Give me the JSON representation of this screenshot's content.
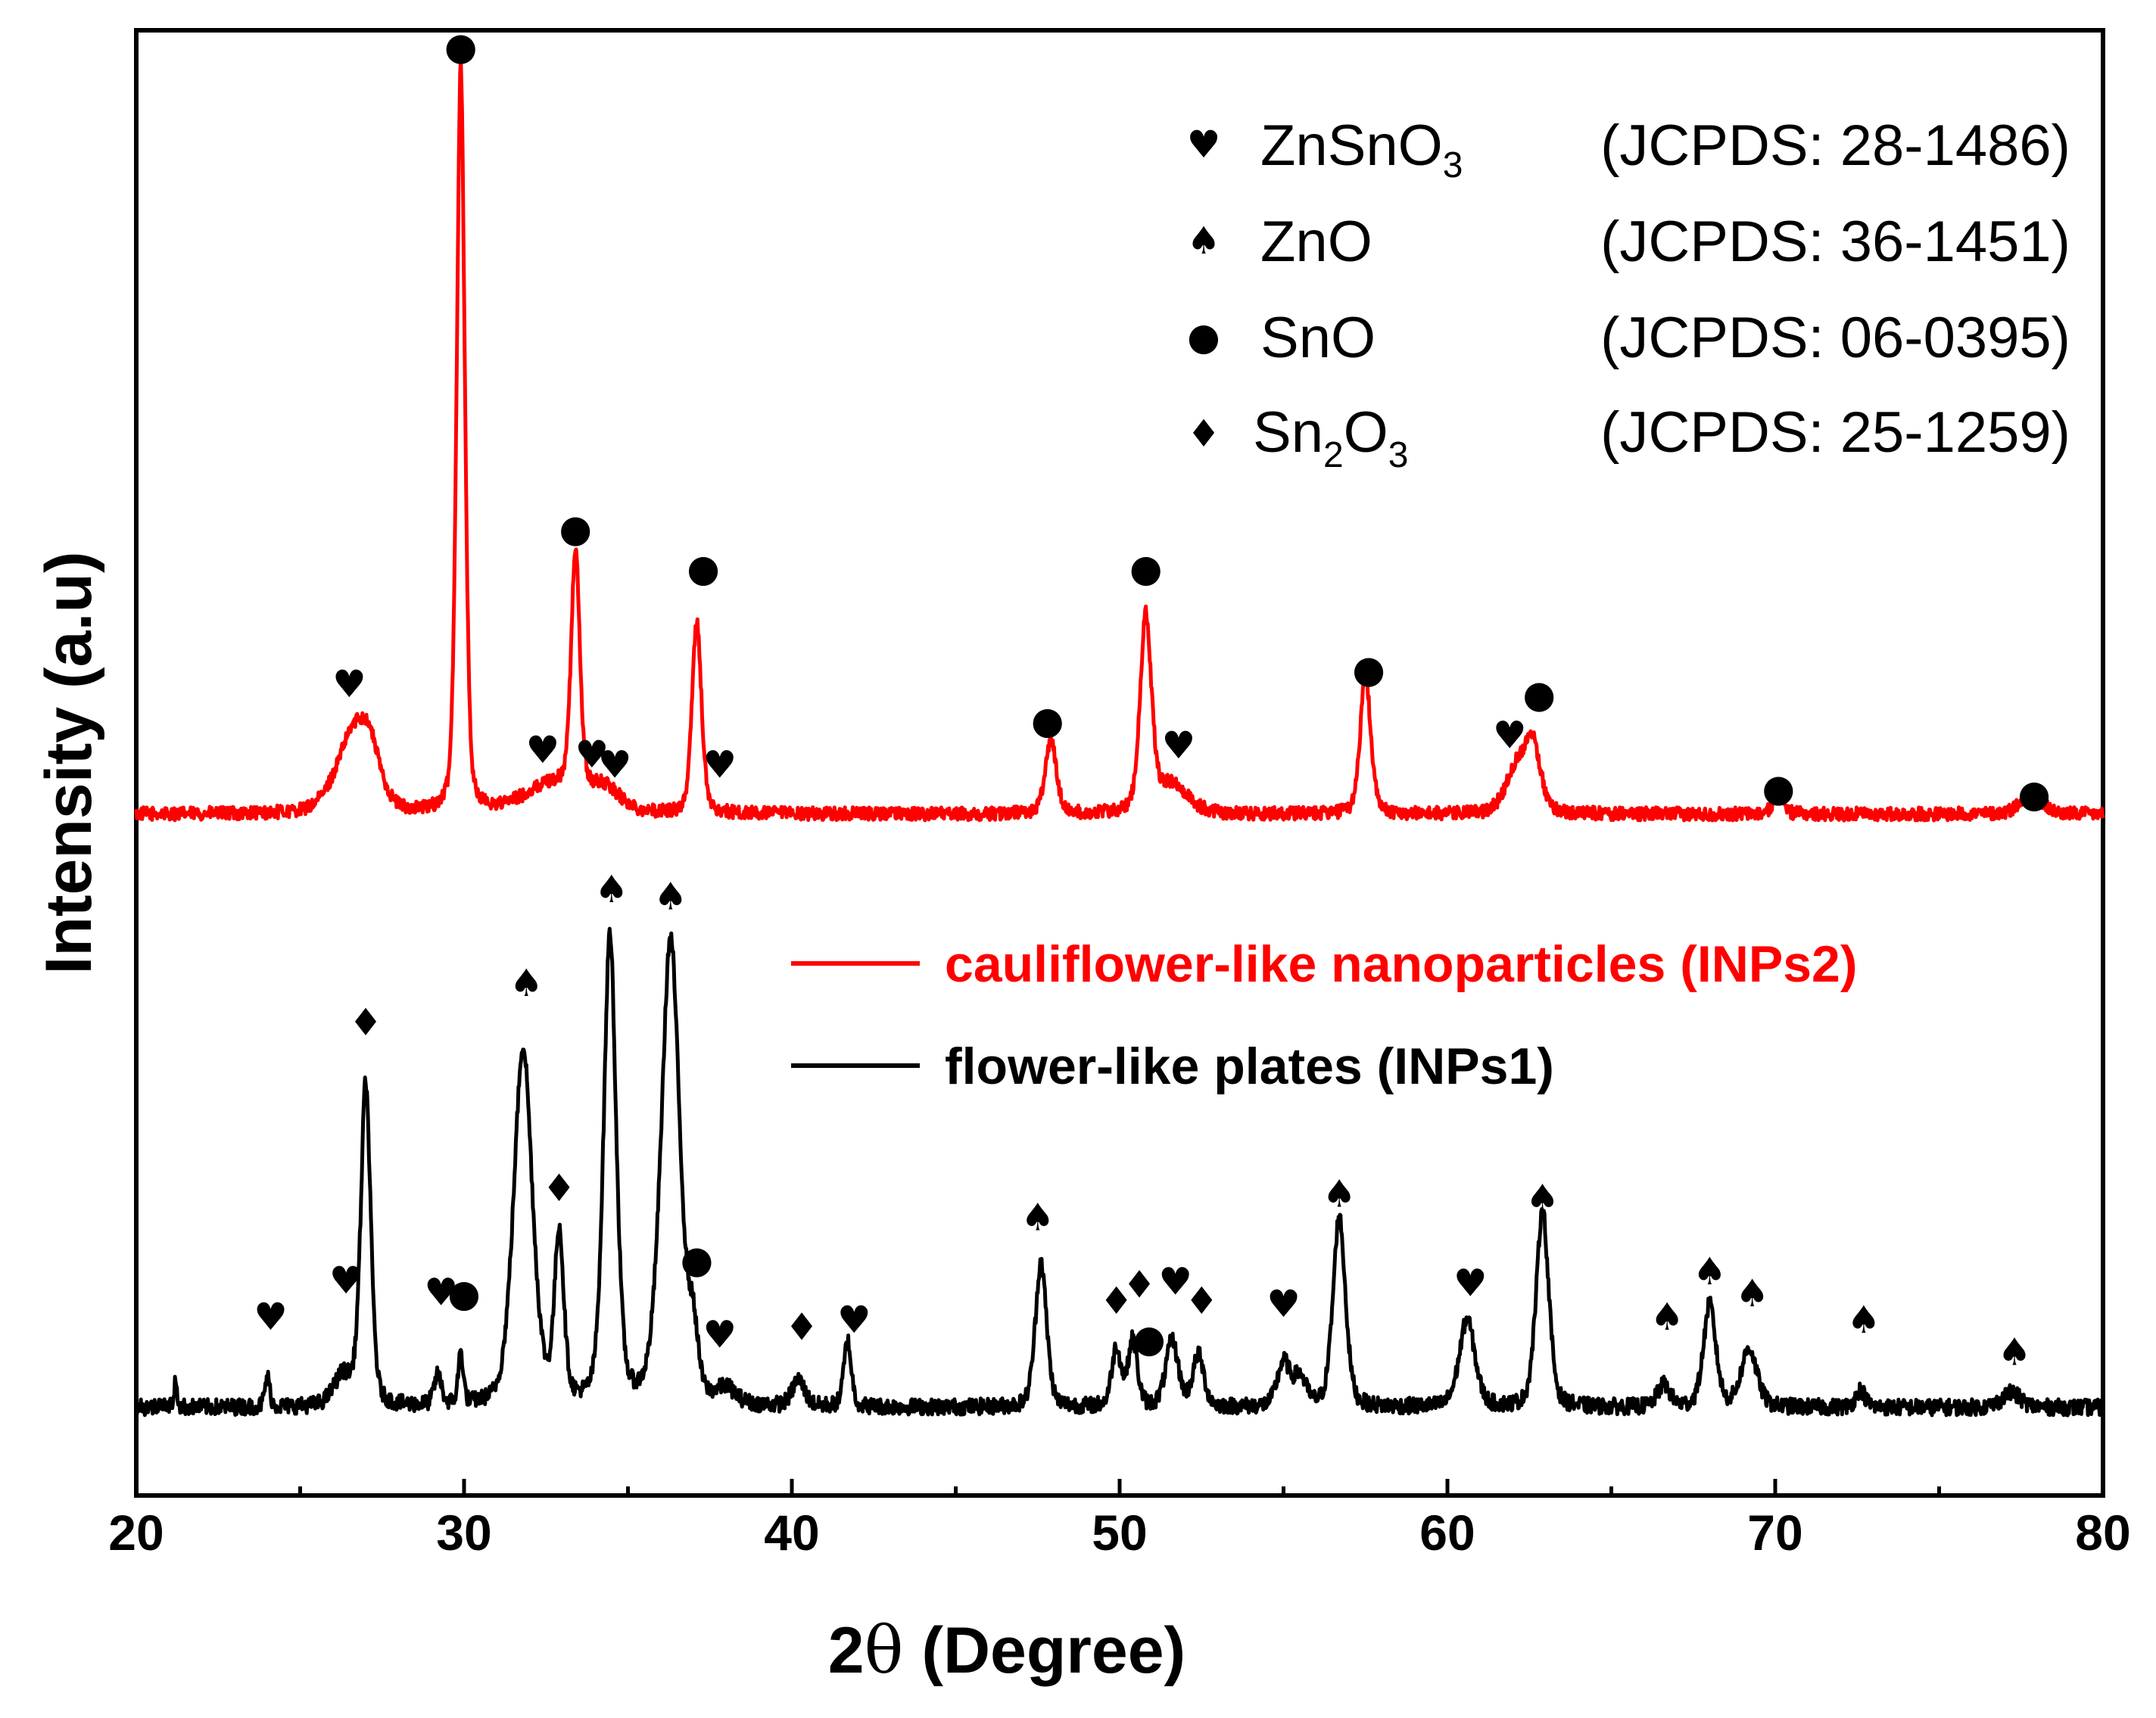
{
  "chart_data": {
    "type": "line",
    "title": "",
    "xlabel_parts": [
      "2",
      "θ",
      " (Degree)"
    ],
    "ylabel": "Intensity (a.u)",
    "xlim": [
      20,
      80
    ],
    "ylim": [
      0,
      100
    ],
    "x_ticks": [
      20,
      30,
      40,
      50,
      60,
      70,
      80
    ],
    "x_tick_labels": [
      "20",
      "30",
      "40",
      "50",
      "60",
      "70",
      "80"
    ],
    "x_minor_step": 5,
    "y_ticks_shown": false,
    "grid": false,
    "legend_position": "center-right",
    "colors": {
      "INPs2": "#ff0000",
      "INPs1": "#000000",
      "axis": "#000000"
    },
    "series": [
      {
        "name": "cauliflower-like nanoparticles (INPs2)",
        "color": "#ff0000",
        "baseline": 46.5,
        "noise": 0.45,
        "peaks": [
          {
            "x": 26.6,
            "h": 5.0,
            "w": 0.55
          },
          {
            "x": 27.1,
            "h": 3.0,
            "w": 0.35
          },
          {
            "x": 29.9,
            "h": 51.0,
            "w": 0.13
          },
          {
            "x": 32.7,
            "h": 2.0,
            "w": 0.9
          },
          {
            "x": 33.4,
            "h": 16.5,
            "w": 0.14
          },
          {
            "x": 34.3,
            "h": 1.5,
            "w": 0.5
          },
          {
            "x": 37.1,
            "h": 13.2,
            "w": 0.15
          },
          {
            "x": 47.9,
            "h": 5.0,
            "w": 0.18
          },
          {
            "x": 50.8,
            "h": 13.2,
            "w": 0.18
          },
          {
            "x": 51.6,
            "h": 2.0,
            "w": 0.5
          },
          {
            "x": 57.5,
            "h": 9.5,
            "w": 0.17
          },
          {
            "x": 62.1,
            "h": 3.0,
            "w": 0.35
          },
          {
            "x": 62.6,
            "h": 4.5,
            "w": 0.25
          },
          {
            "x": 70.1,
            "h": 1.8,
            "w": 0.15
          },
          {
            "x": 77.8,
            "h": 1.4,
            "w": 0.35
          }
        ]
      },
      {
        "name": "flower-like plates (INPs1)",
        "color": "#000000",
        "baseline": 6.0,
        "noise": 0.55,
        "peaks": [
          {
            "x": 21.2,
            "h": 1.8,
            "w": 0.05
          },
          {
            "x": 24.0,
            "h": 2.0,
            "w": 0.08
          },
          {
            "x": 26.3,
            "h": 2.0,
            "w": 0.3
          },
          {
            "x": 27.0,
            "h": 22.0,
            "w": 0.16
          },
          {
            "x": 29.2,
            "h": 2.0,
            "w": 0.12
          },
          {
            "x": 29.9,
            "h": 3.5,
            "w": 0.08
          },
          {
            "x": 31.8,
            "h": 24.5,
            "w": 0.3
          },
          {
            "x": 32.9,
            "h": 11.5,
            "w": 0.15
          },
          {
            "x": 34.45,
            "h": 32.0,
            "w": 0.2
          },
          {
            "x": 36.3,
            "h": 31.8,
            "w": 0.3
          },
          {
            "x": 37.0,
            "h": 4.0,
            "w": 0.15
          },
          {
            "x": 38.0,
            "h": 1.0,
            "w": 0.3
          },
          {
            "x": 40.2,
            "h": 1.8,
            "w": 0.2
          },
          {
            "x": 41.7,
            "h": 4.5,
            "w": 0.12
          },
          {
            "x": 47.6,
            "h": 10.0,
            "w": 0.18
          },
          {
            "x": 49.9,
            "h": 4.0,
            "w": 0.15
          },
          {
            "x": 50.4,
            "h": 4.5,
            "w": 0.15
          },
          {
            "x": 51.6,
            "h": 4.5,
            "w": 0.2
          },
          {
            "x": 52.4,
            "h": 3.5,
            "w": 0.18
          },
          {
            "x": 55.0,
            "h": 3.0,
            "w": 0.2
          },
          {
            "x": 55.5,
            "h": 2.0,
            "w": 0.2
          },
          {
            "x": 56.7,
            "h": 13.0,
            "w": 0.2
          },
          {
            "x": 60.6,
            "h": 6.0,
            "w": 0.25
          },
          {
            "x": 62.9,
            "h": 13.5,
            "w": 0.2
          },
          {
            "x": 66.6,
            "h": 1.5,
            "w": 0.2
          },
          {
            "x": 68.0,
            "h": 7.0,
            "w": 0.2
          },
          {
            "x": 69.2,
            "h": 4.0,
            "w": 0.25
          },
          {
            "x": 72.6,
            "h": 1.2,
            "w": 0.15
          },
          {
            "x": 77.2,
            "h": 1.0,
            "w": 0.3
          }
        ]
      }
    ],
    "phase_markers": [
      {
        "series": "INPs2",
        "symbol": "♥",
        "x": 26.5,
        "y": 55.2
      },
      {
        "series": "INPs2",
        "symbol": "●",
        "x": 29.9,
        "y": 98.7
      },
      {
        "series": "INPs2",
        "symbol": "♥",
        "x": 32.4,
        "y": 50.7
      },
      {
        "series": "INPs2",
        "symbol": "●",
        "x": 33.4,
        "y": 65.8
      },
      {
        "series": "INPs2",
        "symbol": "♥",
        "x": 33.9,
        "y": 50.4
      },
      {
        "series": "INPs2",
        "symbol": "♥",
        "x": 34.6,
        "y": 49.7
      },
      {
        "series": "INPs2",
        "symbol": "●",
        "x": 37.3,
        "y": 63.1
      },
      {
        "series": "INPs2",
        "symbol": "♥",
        "x": 37.8,
        "y": 49.7
      },
      {
        "series": "INPs2",
        "symbol": "●",
        "x": 47.8,
        "y": 52.7
      },
      {
        "series": "INPs2",
        "symbol": "●",
        "x": 50.8,
        "y": 63.1
      },
      {
        "series": "INPs2",
        "symbol": "♥",
        "x": 51.8,
        "y": 51.0
      },
      {
        "series": "INPs2",
        "symbol": "●",
        "x": 57.6,
        "y": 56.2
      },
      {
        "series": "INPs2",
        "symbol": "♥",
        "x": 61.9,
        "y": 51.7
      },
      {
        "series": "INPs2",
        "symbol": "●",
        "x": 62.8,
        "y": 54.5
      },
      {
        "series": "INPs2",
        "symbol": "●",
        "x": 70.1,
        "y": 48.1
      },
      {
        "series": "INPs2",
        "symbol": "●",
        "x": 77.9,
        "y": 47.7
      },
      {
        "series": "INPs1",
        "symbol": "♦",
        "x": 27.0,
        "y": 32.1
      },
      {
        "series": "INPs1",
        "symbol": "♠",
        "x": 31.9,
        "y": 34.8
      },
      {
        "series": "INPs1",
        "symbol": "♦",
        "x": 32.9,
        "y": 20.8
      },
      {
        "series": "INPs1",
        "symbol": "♠",
        "x": 34.5,
        "y": 41.2
      },
      {
        "series": "INPs1",
        "symbol": "♠",
        "x": 36.3,
        "y": 40.7
      },
      {
        "series": "INPs1",
        "symbol": "♥",
        "x": 24.1,
        "y": 12.0
      },
      {
        "series": "INPs1",
        "symbol": "♥",
        "x": 26.4,
        "y": 14.5
      },
      {
        "series": "INPs1",
        "symbol": "♥",
        "x": 29.3,
        "y": 13.7
      },
      {
        "series": "INPs1",
        "symbol": "●",
        "x": 30.0,
        "y": 13.6
      },
      {
        "series": "INPs1",
        "symbol": "●",
        "x": 37.1,
        "y": 15.9
      },
      {
        "series": "INPs1",
        "symbol": "♥",
        "x": 37.8,
        "y": 10.8
      },
      {
        "series": "INPs1",
        "symbol": "♦",
        "x": 40.3,
        "y": 11.3
      },
      {
        "series": "INPs1",
        "symbol": "♥",
        "x": 41.9,
        "y": 11.8
      },
      {
        "series": "INPs1",
        "symbol": "♠",
        "x": 47.5,
        "y": 18.8
      },
      {
        "series": "INPs1",
        "symbol": "♦",
        "x": 49.9,
        "y": 13.1
      },
      {
        "series": "INPs1",
        "symbol": "♦",
        "x": 50.6,
        "y": 14.2
      },
      {
        "series": "INPs1",
        "symbol": "●",
        "x": 50.9,
        "y": 10.5
      },
      {
        "series": "INPs1",
        "symbol": "♥",
        "x": 51.7,
        "y": 14.4
      },
      {
        "series": "INPs1",
        "symbol": "♦",
        "x": 52.5,
        "y": 13.1
      },
      {
        "series": "INPs1",
        "symbol": "♥",
        "x": 55.0,
        "y": 12.9
      },
      {
        "series": "INPs1",
        "symbol": "♠",
        "x": 56.7,
        "y": 20.4
      },
      {
        "series": "INPs1",
        "symbol": "♥",
        "x": 60.7,
        "y": 14.3
      },
      {
        "series": "INPs1",
        "symbol": "♠",
        "x": 62.9,
        "y": 20.1
      },
      {
        "series": "INPs1",
        "symbol": "♠",
        "x": 66.7,
        "y": 12.0
      },
      {
        "series": "INPs1",
        "symbol": "♠",
        "x": 68.0,
        "y": 15.1
      },
      {
        "series": "INPs1",
        "symbol": "♠",
        "x": 69.3,
        "y": 13.6
      },
      {
        "series": "INPs1",
        "symbol": "♠",
        "x": 72.7,
        "y": 11.8
      },
      {
        "series": "INPs1",
        "symbol": "♠",
        "x": 77.3,
        "y": 9.6
      }
    ],
    "reference_legend": [
      {
        "symbol": "♥",
        "phase": "ZnSnO",
        "phase_sub": "3",
        "jcpds": "(JCPDS: 28-1486)"
      },
      {
        "symbol": "♠",
        "phase": "ZnO",
        "phase_sub": "",
        "jcpds": "(JCPDS: 36-1451)"
      },
      {
        "symbol": "●",
        "phase": "SnO",
        "phase_sub": "",
        "jcpds": "(JCPDS: 06-0395)"
      },
      {
        "symbol": "♦",
        "phase": "Sn",
        "phase_sub": "2",
        "phase_tail": "O",
        "phase_tail_sub": "3",
        "jcpds": "(JCPDS: 25-1259)"
      }
    ],
    "series_legend": [
      {
        "label": "cauliflower-like nanoparticles (INPs2)",
        "color": "#ff0000"
      },
      {
        "label": "flower-like plates (INPs1)",
        "color": "#000000"
      }
    ]
  }
}
